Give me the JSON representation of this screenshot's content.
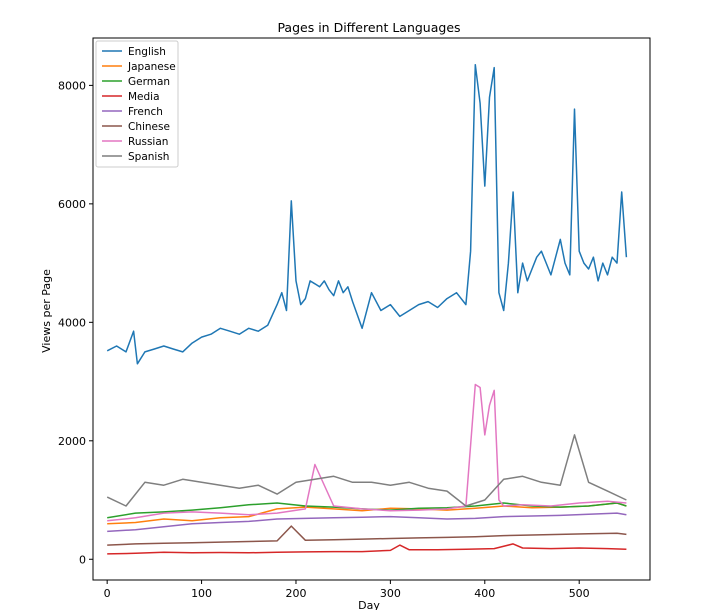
{
  "chart_data": {
    "type": "line",
    "title": "Pages in Different Languages",
    "xlabel": "Day",
    "ylabel": "Views per Page",
    "xlim": [
      -15,
      575
    ],
    "ylim": [
      -350,
      8800
    ],
    "xticks": [
      0,
      100,
      200,
      300,
      400,
      500
    ],
    "yticks": [
      0,
      2000,
      4000,
      6000,
      8000
    ],
    "legend_position": "top-left",
    "series": [
      {
        "name": "English",
        "color": "#1f77b4",
        "x": [
          0,
          10,
          20,
          28,
          32,
          40,
          50,
          60,
          70,
          80,
          90,
          100,
          110,
          120,
          130,
          140,
          150,
          160,
          170,
          180,
          185,
          190,
          195,
          200,
          205,
          210,
          215,
          220,
          225,
          230,
          235,
          240,
          245,
          250,
          255,
          260,
          270,
          280,
          290,
          300,
          310,
          320,
          330,
          340,
          350,
          360,
          370,
          380,
          385,
          390,
          395,
          400,
          405,
          410,
          415,
          420,
          425,
          430,
          435,
          440,
          445,
          450,
          455,
          460,
          465,
          470,
          475,
          480,
          485,
          490,
          495,
          500,
          505,
          510,
          515,
          520,
          525,
          530,
          535,
          540,
          545,
          550
        ],
        "values": [
          3520,
          3600,
          3500,
          3850,
          3300,
          3500,
          3550,
          3600,
          3550,
          3500,
          3650,
          3750,
          3800,
          3900,
          3850,
          3800,
          3900,
          3850,
          3950,
          4300,
          4500,
          4200,
          6050,
          4700,
          4300,
          4400,
          4700,
          4650,
          4600,
          4700,
          4550,
          4450,
          4700,
          4500,
          4600,
          4350,
          3900,
          4500,
          4200,
          4300,
          4100,
          4200,
          4300,
          4350,
          4250,
          4400,
          4500,
          4300,
          5200,
          8350,
          7700,
          6300,
          7800,
          8300,
          4500,
          4200,
          5000,
          6200,
          4500,
          5000,
          4700,
          4900,
          5100,
          5200,
          5000,
          4800,
          5100,
          5400,
          5000,
          4800,
          7600,
          5200,
          5000,
          4900,
          5100,
          4700,
          5000,
          4800,
          5100,
          5000,
          6200,
          5100
        ]
      },
      {
        "name": "Japanese",
        "color": "#ff7f0e",
        "x": [
          0,
          30,
          60,
          90,
          120,
          150,
          180,
          210,
          240,
          270,
          300,
          330,
          360,
          390,
          420,
          450,
          480,
          510,
          540,
          550
        ],
        "values": [
          600,
          620,
          680,
          650,
          700,
          720,
          850,
          880,
          850,
          820,
          860,
          850,
          830,
          860,
          900,
          870,
          880,
          900,
          950,
          900
        ]
      },
      {
        "name": "German",
        "color": "#2ca02c",
        "x": [
          0,
          30,
          60,
          90,
          120,
          150,
          180,
          210,
          240,
          270,
          300,
          330,
          360,
          390,
          420,
          450,
          480,
          510,
          540,
          550
        ],
        "values": [
          700,
          780,
          800,
          830,
          870,
          920,
          950,
          900,
          880,
          850,
          830,
          860,
          870,
          900,
          950,
          900,
          880,
          900,
          950,
          900
        ]
      },
      {
        "name": "Media",
        "color": "#d62728",
        "x": [
          0,
          30,
          60,
          90,
          120,
          150,
          180,
          210,
          240,
          270,
          300,
          310,
          320,
          350,
          380,
          410,
          430,
          440,
          470,
          500,
          530,
          550
        ],
        "values": [
          90,
          100,
          120,
          110,
          115,
          110,
          120,
          125,
          130,
          130,
          150,
          240,
          160,
          160,
          170,
          180,
          260,
          190,
          180,
          190,
          180,
          170
        ]
      },
      {
        "name": "French",
        "color": "#9467bd",
        "x": [
          0,
          30,
          60,
          90,
          120,
          150,
          180,
          210,
          240,
          270,
          300,
          330,
          360,
          390,
          420,
          450,
          480,
          510,
          540,
          550
        ],
        "values": [
          470,
          500,
          550,
          600,
          620,
          640,
          680,
          690,
          700,
          710,
          720,
          700,
          680,
          690,
          720,
          730,
          740,
          760,
          780,
          750
        ]
      },
      {
        "name": "Chinese",
        "color": "#8c564b",
        "x": [
          0,
          30,
          60,
          90,
          120,
          150,
          180,
          195,
          210,
          240,
          270,
          300,
          330,
          360,
          390,
          420,
          450,
          480,
          510,
          540,
          550
        ],
        "values": [
          240,
          260,
          270,
          280,
          290,
          300,
          310,
          560,
          320,
          330,
          340,
          350,
          360,
          370,
          380,
          400,
          410,
          420,
          430,
          440,
          420
        ]
      },
      {
        "name": "Russian",
        "color": "#e377c2",
        "x": [
          0,
          30,
          60,
          90,
          120,
          150,
          180,
          210,
          220,
          240,
          270,
          300,
          330,
          360,
          380,
          390,
          395,
          400,
          405,
          410,
          415,
          420,
          440,
          470,
          500,
          530,
          550
        ],
        "values": [
          650,
          700,
          780,
          800,
          780,
          750,
          780,
          850,
          1600,
          900,
          850,
          820,
          830,
          850,
          900,
          2950,
          2900,
          2100,
          2600,
          2850,
          1000,
          900,
          920,
          900,
          950,
          980,
          950
        ]
      },
      {
        "name": "Spanish",
        "color": "#7f7f7f",
        "x": [
          0,
          20,
          40,
          60,
          80,
          100,
          120,
          140,
          160,
          180,
          200,
          220,
          240,
          260,
          280,
          300,
          320,
          340,
          360,
          380,
          400,
          420,
          440,
          460,
          480,
          495,
          510,
          530,
          550
        ],
        "values": [
          1050,
          900,
          1300,
          1250,
          1350,
          1300,
          1250,
          1200,
          1250,
          1100,
          1300,
          1350,
          1400,
          1300,
          1300,
          1250,
          1300,
          1200,
          1150,
          900,
          1000,
          1350,
          1400,
          1300,
          1250,
          2100,
          1300,
          1150,
          1000
        ]
      }
    ]
  }
}
